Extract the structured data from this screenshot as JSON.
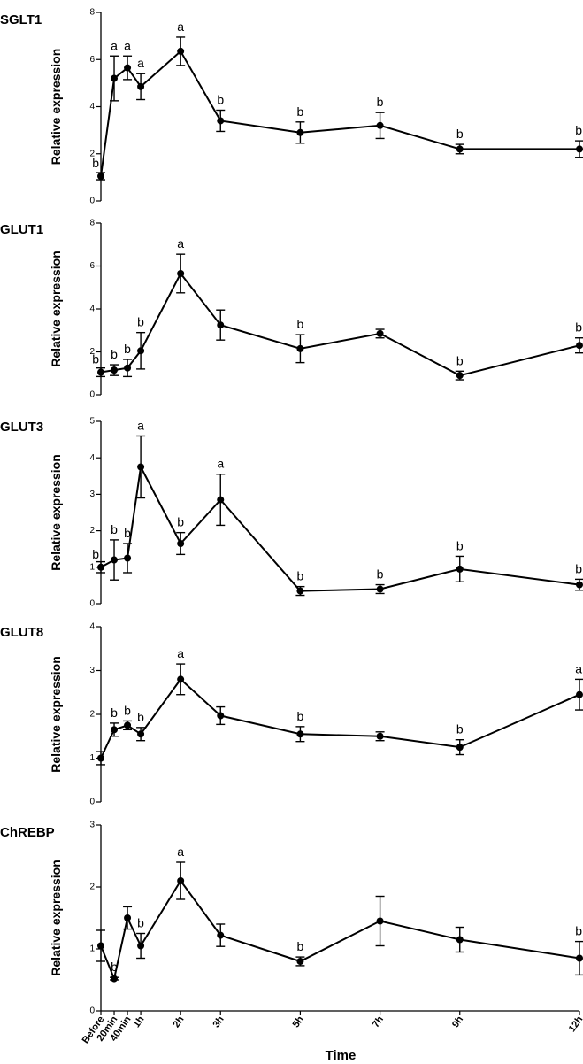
{
  "chart_data": {
    "type": "line",
    "x": [
      "Before",
      "20min",
      "40min",
      "1h",
      "2h",
      "3h",
      "5h",
      "7h",
      "9h",
      "12h"
    ],
    "x_minutes": [
      0,
      20,
      40,
      60,
      120,
      180,
      300,
      420,
      540,
      720
    ],
    "xlabel": "Time",
    "panels": [
      {
        "title": "SGLT1",
        "ylabel": "Relative expression",
        "ylim": [
          0,
          8
        ],
        "yticks": [
          0,
          2,
          4,
          6,
          8
        ],
        "values": [
          1.05,
          5.2,
          5.65,
          4.85,
          6.35,
          3.4,
          2.9,
          3.2,
          2.2,
          2.2
        ],
        "errors": [
          0.15,
          0.95,
          0.5,
          0.55,
          0.6,
          0.45,
          0.45,
          0.55,
          0.2,
          0.35
        ],
        "letters": [
          "b",
          "a",
          "a",
          "a",
          "a",
          "b",
          "b",
          "b",
          "b",
          "b"
        ]
      },
      {
        "title": "GLUT1",
        "ylabel": "Relative expression",
        "ylim": [
          0,
          8
        ],
        "yticks": [
          0,
          2,
          4,
          6,
          8
        ],
        "values": [
          1.05,
          1.15,
          1.25,
          2.05,
          5.65,
          3.25,
          2.15,
          2.85,
          0.9,
          2.3
        ],
        "errors": [
          0.2,
          0.25,
          0.4,
          0.85,
          0.9,
          0.7,
          0.65,
          0.2,
          0.2,
          0.35
        ],
        "letters": [
          "b",
          "b",
          "b",
          "b",
          "a",
          "",
          "b",
          "",
          "b",
          "b"
        ]
      },
      {
        "title": "GLUT3",
        "ylabel": "Relative expression",
        "ylim": [
          0,
          5
        ],
        "yticks": [
          0,
          1,
          2,
          3,
          4,
          5
        ],
        "values": [
          1.0,
          1.2,
          1.25,
          3.75,
          1.65,
          2.85,
          0.35,
          0.4,
          0.95,
          0.52
        ],
        "errors": [
          0.15,
          0.55,
          0.4,
          0.85,
          0.3,
          0.7,
          0.12,
          0.12,
          0.35,
          0.15
        ],
        "letters": [
          "b",
          "b",
          "b",
          "a",
          "b",
          "a",
          "b",
          "b",
          "b",
          "b"
        ]
      },
      {
        "title": "GLUT8",
        "ylabel": "Relative expression",
        "ylim": [
          0,
          4
        ],
        "yticks": [
          0,
          1,
          2,
          3,
          4
        ],
        "values": [
          1.0,
          1.65,
          1.75,
          1.55,
          2.8,
          1.97,
          1.55,
          1.5,
          1.25,
          2.45
        ],
        "errors": [
          0.15,
          0.15,
          0.1,
          0.15,
          0.35,
          0.2,
          0.17,
          0.1,
          0.17,
          0.35
        ],
        "letters": [
          "",
          "b",
          "b",
          "b",
          "a",
          "",
          "b",
          "",
          "b",
          "a"
        ]
      },
      {
        "title": "ChREBP",
        "ylabel": "Relative expression",
        "ylim": [
          0,
          3
        ],
        "yticks": [
          0,
          1,
          2,
          3
        ],
        "values": [
          1.05,
          0.52,
          1.5,
          1.05,
          2.1,
          1.22,
          0.8,
          1.45,
          1.15,
          0.85
        ],
        "errors": [
          0.25,
          0.02,
          0.18,
          0.2,
          0.3,
          0.18,
          0.07,
          0.4,
          0.2,
          0.27
        ],
        "letters": [
          "",
          "b",
          "",
          "b",
          "a",
          "",
          "b",
          "",
          "",
          "b"
        ]
      }
    ]
  }
}
